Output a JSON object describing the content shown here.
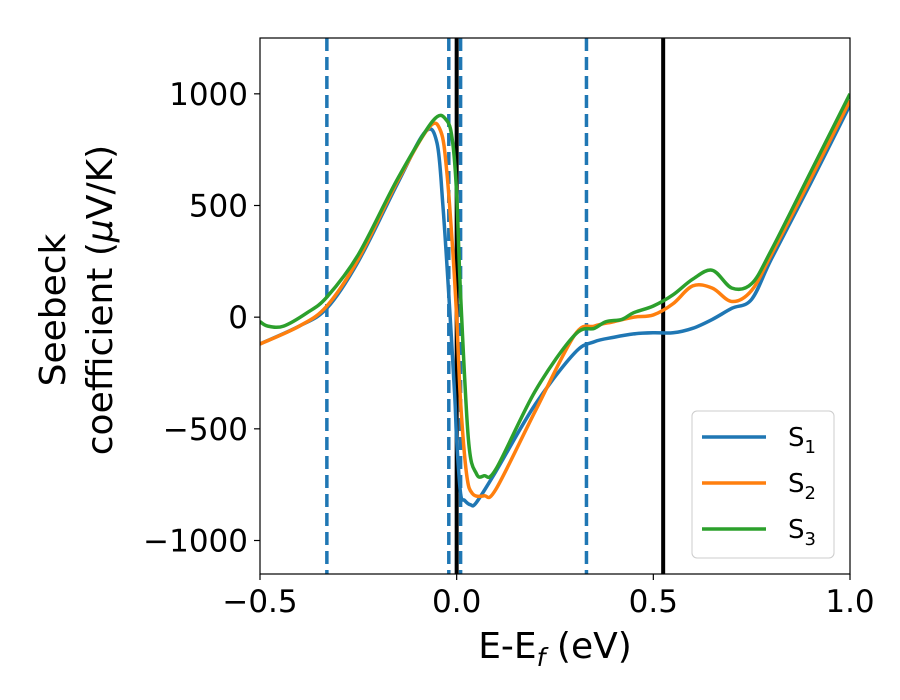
{
  "chart_data": {
    "type": "line",
    "xlabel": "E-E",
    "xlabel_sub": "f",
    "xlabel_unit": " (eV)",
    "ylabel_line1": "Seebeck",
    "ylabel_line2": "coefficient  (",
    "ylabel_mu": "μ",
    "ylabel_unit": "V/K)",
    "xlim": [
      -0.5,
      1.0
    ],
    "ylim": [
      -1150,
      1250
    ],
    "xticks": [
      -0.5,
      0.0,
      0.5,
      1.0
    ],
    "xtick_labels": [
      "−0.5",
      "0.0",
      "0.5",
      "1.0"
    ],
    "yticks": [
      -1000,
      -500,
      0,
      500,
      1000
    ],
    "ytick_labels": [
      "−1000",
      "−500",
      "0",
      "500",
      "1000"
    ],
    "grid": false,
    "legend_position": "lower-right",
    "vlines_solid": [
      0.0,
      0.525
    ],
    "vlines_dashed": [
      -0.33,
      -0.02,
      0.01,
      0.33
    ],
    "vline_solid_color": "#000000",
    "vline_dashed_color": "#1f77b4",
    "series": [
      {
        "name": "S",
        "sub": "1",
        "color": "#1f77b4",
        "x": [
          -0.5,
          -0.4,
          -0.33,
          -0.25,
          -0.15,
          -0.08,
          -0.05,
          -0.035,
          -0.02,
          -0.005,
          0.0,
          0.01,
          0.02,
          0.035,
          0.05,
          0.1,
          0.2,
          0.3,
          0.35,
          0.4,
          0.45,
          0.5,
          0.55,
          0.6,
          0.65,
          0.7,
          0.75,
          0.8,
          0.9,
          1.0
        ],
        "y": [
          -120,
          -40,
          40,
          250,
          600,
          830,
          780,
          500,
          100,
          -350,
          -550,
          -790,
          -820,
          -840,
          -830,
          -690,
          -390,
          -160,
          -110,
          -90,
          -75,
          -70,
          -70,
          -50,
          -10,
          40,
          80,
          260,
          600,
          950
        ]
      },
      {
        "name": "S",
        "sub": "2",
        "color": "#ff7f0e",
        "x": [
          -0.5,
          -0.4,
          -0.33,
          -0.25,
          -0.15,
          -0.07,
          -0.04,
          -0.025,
          -0.01,
          0.0,
          0.01,
          0.025,
          0.04,
          0.07,
          0.1,
          0.2,
          0.3,
          0.35,
          0.4,
          0.45,
          0.5,
          0.55,
          0.6,
          0.65,
          0.7,
          0.75,
          0.8,
          0.9,
          1.0
        ],
        "y": [
          -120,
          -40,
          50,
          260,
          610,
          850,
          830,
          650,
          300,
          0,
          -380,
          -700,
          -790,
          -800,
          -770,
          -420,
          -80,
          -40,
          -20,
          0,
          10,
          60,
          140,
          130,
          70,
          120,
          280,
          620,
          970
        ]
      },
      {
        "name": "S",
        "sub": "3",
        "color": "#2ca02c",
        "x": [
          -0.5,
          -0.48,
          -0.44,
          -0.38,
          -0.33,
          -0.25,
          -0.15,
          -0.06,
          -0.025,
          -0.01,
          0.0,
          0.01,
          0.03,
          0.05,
          0.07,
          0.1,
          0.2,
          0.3,
          0.35,
          0.38,
          0.42,
          0.45,
          0.5,
          0.55,
          0.6,
          0.65,
          0.7,
          0.75,
          0.8,
          0.9,
          1.0
        ],
        "y": [
          -20,
          -40,
          -40,
          20,
          90,
          280,
          620,
          880,
          880,
          780,
          550,
          100,
          -550,
          -700,
          -710,
          -680,
          -330,
          -80,
          -50,
          -20,
          -10,
          20,
          50,
          100,
          170,
          210,
          130,
          150,
          300,
          650,
          1000
        ]
      }
    ]
  }
}
